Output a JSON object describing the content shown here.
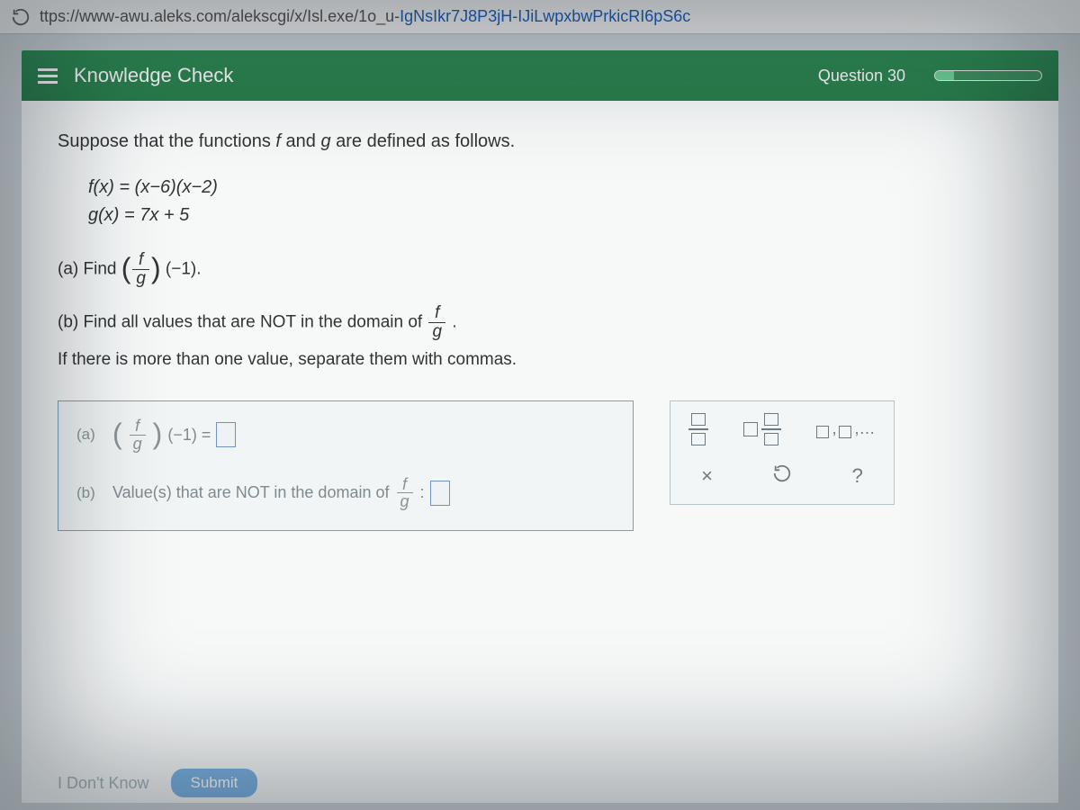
{
  "browser": {
    "url_prefix": "ttps://www-awu.aleks.com/alekscgi/x/Isl.exe/1o_u-",
    "url_tail": "IgNsIkr7J8P3jH-IJiLwpxbwPrkicRI6pS6c"
  },
  "header": {
    "title": "Knowledge Check",
    "question_label": "Question 30",
    "progress_percent": 18
  },
  "problem": {
    "lead_a": "Suppose that the functions ",
    "lead_f": "f",
    "lead_and": " and ",
    "lead_g": "g",
    "lead_b": " are defined as follows.",
    "def_f": "f(x) = (x−6)(x−2)",
    "def_g": "g(x) = 7x + 5",
    "part_a_pre": "(a) Find ",
    "part_a_arg": "(−1).",
    "part_b": "(b) Find all values that are NOT in the domain of ",
    "part_b_tail": ".",
    "note": "If there is more than one value, separate them with commas."
  },
  "answers": {
    "a_label": "(a)",
    "a_arg": "(−1) =",
    "b_label": "(b)",
    "b_text_a": "Value(s) that are NOT in the domain of ",
    "b_text_b": " :"
  },
  "toolbox": {
    "x": "×",
    "reset": "↺",
    "help": "?",
    "list_ellipsis": ",…"
  },
  "footer": {
    "idk": "I Don't Know",
    "submit": "Submit"
  },
  "colors": {
    "header_bg": "#2f8e56",
    "card_bg": "#f7f9f9",
    "accent_border": "#7c9cc8",
    "tool_text": "#6f7a80"
  }
}
